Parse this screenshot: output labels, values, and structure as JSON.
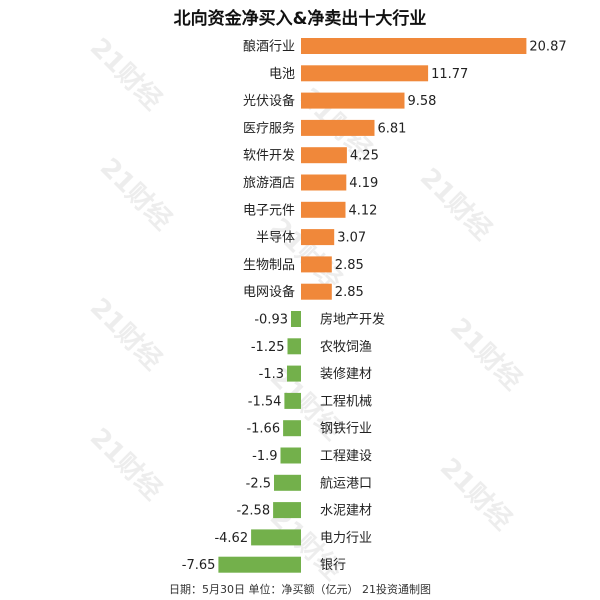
{
  "colors": {
    "positive": "#f0883a",
    "negative": "#73b04b"
  },
  "watermark_text": "21财经",
  "footer": "日期：5月30日 单位：净买额（亿元） 21投资通制图",
  "chart_data": {
    "type": "bar",
    "orientation": "horizontal",
    "title": "北向资金净买入&净卖出十大行业",
    "xlabel": "",
    "ylabel": "",
    "categories": [
      "酿酒行业",
      "电池",
      "光伏设备",
      "医疗服务",
      "软件开发",
      "旅游酒店",
      "电子元件",
      "半导体",
      "生物制品",
      "电网设备",
      "房地产开发",
      "农牧饲渔",
      "装修建材",
      "工程机械",
      "钢铁行业",
      "工程建设",
      "航运港口",
      "水泥建材",
      "电力行业",
      "银行"
    ],
    "values": [
      20.87,
      11.77,
      9.58,
      6.81,
      4.25,
      4.19,
      4.12,
      3.07,
      2.85,
      2.85,
      -0.93,
      -1.25,
      -1.3,
      -1.54,
      -1.66,
      -1.9,
      -2.5,
      -2.58,
      -4.62,
      -7.65
    ],
    "value_labels": [
      "20.87",
      "11.77",
      "9.58",
      "6.81",
      "4.25",
      "4.19",
      "4.12",
      "3.07",
      "2.85",
      "2.85",
      "-0.93",
      "-1.25",
      "-1.3",
      "-1.54",
      "-1.66",
      "-1.9",
      "-2.5",
      "-2.58",
      "-4.62",
      "-7.65"
    ],
    "grid": false,
    "legend": "none"
  }
}
